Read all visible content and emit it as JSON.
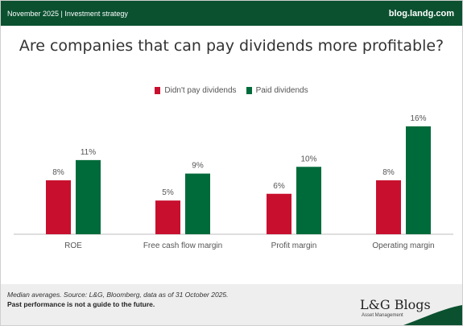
{
  "header": {
    "left_text": "November 2025 | Investment strategy",
    "right_text": "blog.landg.com"
  },
  "chart_data": {
    "type": "bar",
    "title": "Are companies that can pay dividends more profitable?",
    "categories": [
      "ROE",
      "Free cash flow margin",
      "Profit margin",
      "Operating margin"
    ],
    "series": [
      {
        "name": "Didn't pay dividends",
        "values": [
          8,
          5,
          6,
          8
        ],
        "labels": [
          "8%",
          "5%",
          "6%",
          "8%"
        ],
        "color": "#c8102e"
      },
      {
        "name": "Paid dividends",
        "values": [
          11,
          9,
          10,
          16
        ],
        "labels": [
          "11%",
          "9%",
          "10%",
          "16%"
        ],
        "color": "#006b3a"
      }
    ],
    "ylim": [
      0,
      16
    ],
    "grid": false,
    "legend_position": "top-center"
  },
  "footer": {
    "note": "Median averages. Source: L&G, Bloomberg, data as of 31 October 2025.",
    "disclaimer": "Past performance is not a guide to the future.",
    "brand": "L&G Blogs",
    "brand_sub": "Asset Management"
  },
  "colors": {
    "header_bg": "#0b5130",
    "footer_bg": "#eeeeee"
  }
}
